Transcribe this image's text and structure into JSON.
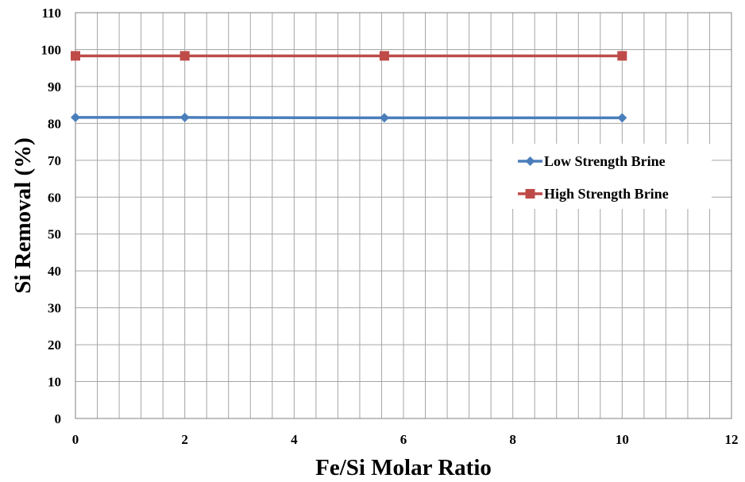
{
  "chart_data": {
    "type": "line",
    "title": "",
    "xlabel": "Fe/Si Molar Ratio",
    "ylabel": "Si Removal (%)",
    "xlim": [
      0,
      12
    ],
    "ylim": [
      0,
      110
    ],
    "x_ticks": [
      "0",
      "2",
      "4",
      "6",
      "8",
      "10",
      "12"
    ],
    "y_ticks": [
      "0",
      "10",
      "20",
      "30",
      "40",
      "50",
      "60",
      "70",
      "80",
      "90",
      "100",
      "110"
    ],
    "grid": true,
    "legend_position": "right",
    "series": [
      {
        "name": "Low Strength Brine",
        "color": "#4a7ebb",
        "marker": "diamond",
        "x": [
          0,
          2,
          5.65,
          10
        ],
        "y": [
          81.6,
          81.6,
          81.5,
          81.5
        ]
      },
      {
        "name": "High Strength Brine",
        "color": "#be4b48",
        "marker": "square",
        "x": [
          0,
          2,
          5.65,
          10
        ],
        "y": [
          98.3,
          98.3,
          98.3,
          98.3
        ]
      }
    ]
  }
}
